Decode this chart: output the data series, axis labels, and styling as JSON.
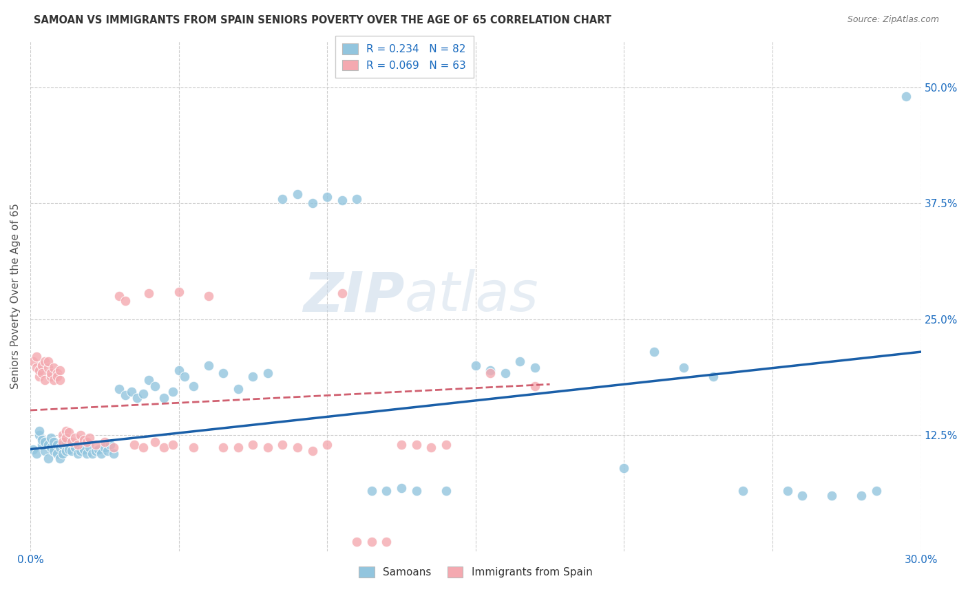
{
  "title": "SAMOAN VS IMMIGRANTS FROM SPAIN SENIORS POVERTY OVER THE AGE OF 65 CORRELATION CHART",
  "source": "Source: ZipAtlas.com",
  "ylabel": "Seniors Poverty Over the Age of 65",
  "xmin": 0.0,
  "xmax": 0.3,
  "ymin": 0.0,
  "ymax": 0.55,
  "xtick_vals": [
    0.0,
    0.05,
    0.1,
    0.15,
    0.2,
    0.25,
    0.3
  ],
  "xticklabels": [
    "0.0%",
    "",
    "",
    "",
    "",
    "",
    "30.0%"
  ],
  "ytick_right_labels": [
    "50.0%",
    "37.5%",
    "25.0%",
    "12.5%"
  ],
  "ytick_right_values": [
    0.5,
    0.375,
    0.25,
    0.125
  ],
  "legend_label1": "Samoans",
  "legend_label2": "Immigrants from Spain",
  "color_blue": "#92c5de",
  "color_pink": "#f4a9b0",
  "color_line_blue": "#1a5fa8",
  "color_line_pink": "#d06070",
  "watermark_text": "ZIPatlas",
  "blue_slope": 0.234,
  "pink_slope": 0.069,
  "blue_n": 82,
  "pink_n": 63,
  "blue_x": [
    0.001,
    0.002,
    0.003,
    0.003,
    0.004,
    0.004,
    0.005,
    0.005,
    0.006,
    0.006,
    0.007,
    0.007,
    0.008,
    0.008,
    0.009,
    0.009,
    0.01,
    0.01,
    0.011,
    0.011,
    0.012,
    0.012,
    0.013,
    0.014,
    0.015,
    0.016,
    0.017,
    0.018,
    0.019,
    0.02,
    0.021,
    0.022,
    0.023,
    0.024,
    0.025,
    0.026,
    0.027,
    0.028,
    0.03,
    0.032,
    0.034,
    0.036,
    0.038,
    0.04,
    0.042,
    0.045,
    0.048,
    0.05,
    0.052,
    0.055,
    0.06,
    0.065,
    0.07,
    0.075,
    0.08,
    0.085,
    0.09,
    0.095,
    0.1,
    0.105,
    0.11,
    0.115,
    0.12,
    0.125,
    0.13,
    0.14,
    0.15,
    0.155,
    0.16,
    0.165,
    0.17,
    0.2,
    0.21,
    0.22,
    0.23,
    0.24,
    0.255,
    0.26,
    0.27,
    0.28,
    0.285,
    0.295
  ],
  "blue_y": [
    0.11,
    0.105,
    0.125,
    0.13,
    0.115,
    0.12,
    0.108,
    0.118,
    0.1,
    0.115,
    0.112,
    0.122,
    0.108,
    0.118,
    0.105,
    0.115,
    0.1,
    0.112,
    0.105,
    0.115,
    0.108,
    0.118,
    0.11,
    0.108,
    0.112,
    0.105,
    0.108,
    0.11,
    0.105,
    0.112,
    0.105,
    0.108,
    0.11,
    0.105,
    0.112,
    0.108,
    0.115,
    0.105,
    0.175,
    0.168,
    0.172,
    0.165,
    0.17,
    0.185,
    0.178,
    0.165,
    0.172,
    0.195,
    0.188,
    0.178,
    0.2,
    0.192,
    0.175,
    0.188,
    0.192,
    0.38,
    0.385,
    0.375,
    0.382,
    0.378,
    0.38,
    0.065,
    0.065,
    0.068,
    0.065,
    0.065,
    0.2,
    0.195,
    0.192,
    0.205,
    0.198,
    0.09,
    0.215,
    0.198,
    0.188,
    0.065,
    0.065,
    0.06,
    0.06,
    0.06,
    0.065,
    0.49
  ],
  "pink_x": [
    0.001,
    0.002,
    0.002,
    0.003,
    0.003,
    0.004,
    0.004,
    0.005,
    0.005,
    0.006,
    0.006,
    0.007,
    0.007,
    0.008,
    0.008,
    0.009,
    0.009,
    0.01,
    0.01,
    0.011,
    0.011,
    0.012,
    0.012,
    0.013,
    0.014,
    0.015,
    0.016,
    0.017,
    0.018,
    0.019,
    0.02,
    0.022,
    0.025,
    0.028,
    0.03,
    0.032,
    0.035,
    0.038,
    0.04,
    0.042,
    0.045,
    0.048,
    0.05,
    0.055,
    0.06,
    0.065,
    0.07,
    0.075,
    0.08,
    0.085,
    0.09,
    0.095,
    0.1,
    0.105,
    0.11,
    0.115,
    0.12,
    0.125,
    0.13,
    0.135,
    0.14,
    0.155,
    0.17
  ],
  "pink_y": [
    0.205,
    0.198,
    0.21,
    0.188,
    0.195,
    0.2,
    0.192,
    0.205,
    0.185,
    0.198,
    0.205,
    0.188,
    0.192,
    0.198,
    0.185,
    0.192,
    0.188,
    0.195,
    0.185,
    0.125,
    0.118,
    0.13,
    0.122,
    0.128,
    0.118,
    0.122,
    0.115,
    0.125,
    0.12,
    0.118,
    0.122,
    0.115,
    0.118,
    0.112,
    0.275,
    0.27,
    0.115,
    0.112,
    0.278,
    0.118,
    0.112,
    0.115,
    0.28,
    0.112,
    0.275,
    0.112,
    0.112,
    0.115,
    0.112,
    0.115,
    0.112,
    0.108,
    0.115,
    0.278,
    0.01,
    0.01,
    0.01,
    0.115,
    0.115,
    0.112,
    0.115,
    0.192,
    0.178
  ]
}
